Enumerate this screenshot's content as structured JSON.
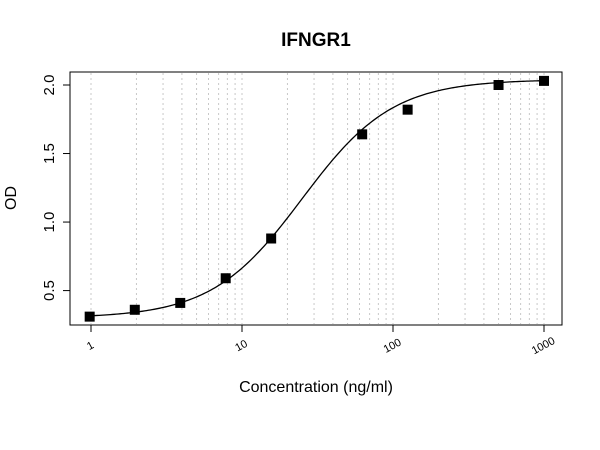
{
  "chart_data": {
    "type": "scatter",
    "title": "IFNGR1",
    "xlabel": "Concentration (ng/ml)",
    "ylabel": "OD",
    "x_scale": "log",
    "xlim": [
      1,
      1000
    ],
    "ylim": [
      0.3,
      2.0
    ],
    "x_ticks": [
      {
        "value": 1,
        "label": "1"
      },
      {
        "value": 10,
        "label": "10"
      },
      {
        "value": 100,
        "label": "100"
      },
      {
        "value": 1000,
        "label": "1000"
      }
    ],
    "y_ticks": [
      {
        "value": 0.5,
        "label": "0.5"
      },
      {
        "value": 1.0,
        "label": "1.0"
      },
      {
        "value": 1.5,
        "label": "1.5"
      },
      {
        "value": 2.0,
        "label": "2.0"
      }
    ],
    "grid": "vertical dotted lines at log minor ticks",
    "series": [
      {
        "points": [
          {
            "x": 0.98,
            "y": 0.31
          },
          {
            "x": 1.95,
            "y": 0.36
          },
          {
            "x": 3.9,
            "y": 0.41
          },
          {
            "x": 7.8,
            "y": 0.59
          },
          {
            "x": 15.6,
            "y": 0.88
          },
          {
            "x": 62.5,
            "y": 1.64
          },
          {
            "x": 125,
            "y": 1.82
          },
          {
            "x": 500,
            "y": 2.0
          },
          {
            "x": 1000,
            "y": 2.03
          }
        ]
      }
    ],
    "fit_curve": {
      "type": "4PL",
      "bottom": 0.3,
      "top": 2.04,
      "ec50": 25,
      "hill": 1.45
    },
    "colors": {
      "points": "#000000",
      "curve": "#000000",
      "grid": "#c8c8c8",
      "frame": "#000000"
    }
  }
}
